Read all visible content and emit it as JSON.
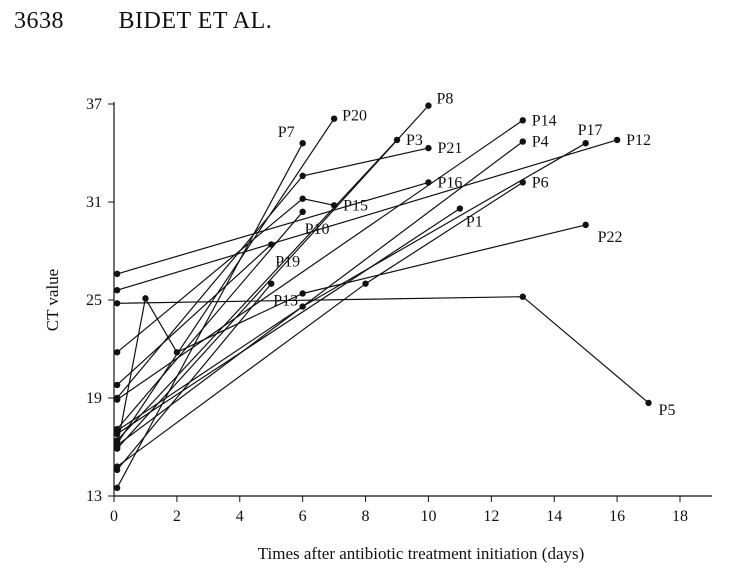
{
  "header": {
    "page_number": "3638",
    "running_title": "BIDET ET AL."
  },
  "chart_data": {
    "type": "line",
    "title": "",
    "xlabel": "Times after antibiotic treatment initiation (days)",
    "ylabel": "CT value",
    "xlim": [
      0,
      18
    ],
    "ylim": [
      13,
      37
    ],
    "xticks": [
      0,
      2,
      4,
      6,
      8,
      10,
      12,
      14,
      16,
      18
    ],
    "yticks": [
      13,
      19,
      25,
      31,
      37
    ],
    "grid": false,
    "legend": "none",
    "series": [
      {
        "name": "P1",
        "points": [
          [
            0.1,
            16.8
          ],
          [
            11,
            30.6
          ]
        ]
      },
      {
        "name": "P3",
        "points": [
          [
            0.1,
            16.4
          ],
          [
            9,
            34.8
          ]
        ]
      },
      {
        "name": "P4",
        "points": [
          [
            0.1,
            16.1
          ],
          [
            13,
            34.7
          ]
        ]
      },
      {
        "name": "P5",
        "points": [
          [
            0.1,
            24.8
          ],
          [
            13,
            25.2
          ],
          [
            17,
            18.7
          ]
        ]
      },
      {
        "name": "P6",
        "points": [
          [
            0.1,
            14.8
          ],
          [
            8,
            26.0
          ],
          [
            13,
            32.2
          ]
        ]
      },
      {
        "name": "P7",
        "points": [
          [
            0.1,
            13.5
          ],
          [
            6,
            34.6
          ]
        ]
      },
      {
        "name": "P8",
        "points": [
          [
            0.1,
            15.9
          ],
          [
            10,
            36.9
          ]
        ]
      },
      {
        "name": "P10",
        "points": [
          [
            0.1,
            17.1
          ],
          [
            6,
            30.4
          ]
        ]
      },
      {
        "name": "P12",
        "points": [
          [
            0.1,
            25.6
          ],
          [
            16,
            34.8
          ]
        ]
      },
      {
        "name": "P13",
        "points": [
          [
            0.1,
            14.6
          ],
          [
            5,
            26.0
          ]
        ]
      },
      {
        "name": "P14",
        "points": [
          [
            0.1,
            18.9
          ],
          [
            13,
            36.0
          ]
        ]
      },
      {
        "name": "P15",
        "points": [
          [
            0.1,
            21.8
          ],
          [
            6,
            31.2
          ],
          [
            7,
            30.8
          ]
        ]
      },
      {
        "name": "P16",
        "points": [
          [
            0.1,
            26.6
          ],
          [
            10,
            32.2
          ]
        ]
      },
      {
        "name": "P17",
        "points": [
          [
            0.1,
            17.0
          ],
          [
            6,
            24.6
          ],
          [
            15,
            34.6
          ]
        ]
      },
      {
        "name": "P19",
        "points": [
          [
            0.1,
            19.8
          ],
          [
            5,
            28.4
          ]
        ]
      },
      {
        "name": "P20",
        "points": [
          [
            0.1,
            16.2
          ],
          [
            7,
            36.1
          ]
        ]
      },
      {
        "name": "P21",
        "points": [
          [
            0.1,
            19.0
          ],
          [
            6,
            32.6
          ],
          [
            10,
            34.3
          ]
        ]
      },
      {
        "name": "P22",
        "points": [
          [
            0.1,
            16.0
          ],
          [
            1,
            25.1
          ],
          [
            2,
            21.8
          ],
          [
            6,
            25.4
          ],
          [
            15,
            29.6
          ]
        ]
      }
    ],
    "point_labels": [
      {
        "text": "P1",
        "x": 11,
        "y": 30.6
      },
      {
        "text": "P3",
        "x": 9,
        "y": 34.8
      },
      {
        "text": "P4",
        "x": 13,
        "y": 34.7
      },
      {
        "text": "P5",
        "x": 17,
        "y": 18.7
      },
      {
        "text": "P6",
        "x": 13,
        "y": 32.2
      },
      {
        "text": "P7",
        "x": 6,
        "y": 34.6
      },
      {
        "text": "P8",
        "x": 10,
        "y": 36.9
      },
      {
        "text": "P10",
        "x": 6,
        "y": 30.4
      },
      {
        "text": "P12",
        "x": 16,
        "y": 34.8
      },
      {
        "text": "P13",
        "x": 5,
        "y": 26.0
      },
      {
        "text": "P14",
        "x": 13,
        "y": 36.0
      },
      {
        "text": "P15",
        "x": 7,
        "y": 30.8
      },
      {
        "text": "P16",
        "x": 10,
        "y": 32.2
      },
      {
        "text": "P17",
        "x": 15,
        "y": 34.6
      },
      {
        "text": "P19",
        "x": 5,
        "y": 28.4
      },
      {
        "text": "P20",
        "x": 7,
        "y": 36.1
      },
      {
        "text": "P21",
        "x": 10,
        "y": 34.3
      },
      {
        "text": "P22",
        "x": 15,
        "y": 29.6
      }
    ]
  }
}
